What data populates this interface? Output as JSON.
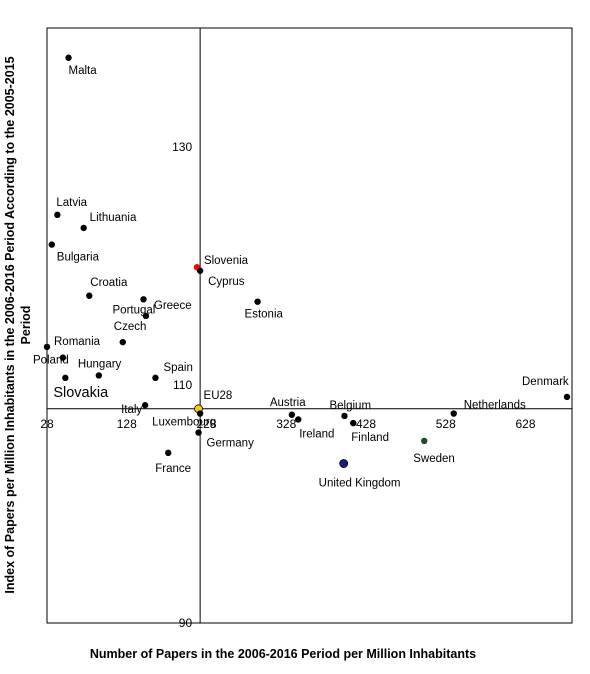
{
  "chart_data": {
    "type": "scatter",
    "title": "",
    "xlabel": "Number of Papers in the 2006-2016 Period per Million Inhabitants",
    "ylabel": "Index of Papers per Million Inhabitants in the 2006-2016 Period According to the 2005-2015 Period",
    "xlim": [
      28,
      680
    ],
    "ylim": [
      90,
      140
    ],
    "x_ticks": [
      "28",
      "128",
      "228",
      "328",
      "428",
      "528",
      "628"
    ],
    "y_ticks": [
      "90",
      "110",
      "130"
    ],
    "crosshair": {
      "x": 220,
      "y": 108
    },
    "points": [
      {
        "label": "Malta",
        "x": 55,
        "y": 137.5,
        "color": "#000000"
      },
      {
        "label": "Latvia",
        "x": 41,
        "y": 124.3,
        "color": "#000000"
      },
      {
        "label": "Lithuania",
        "x": 74,
        "y": 123.2,
        "color": "#000000"
      },
      {
        "label": "Bulgaria",
        "x": 34,
        "y": 121.8,
        "color": "#000000"
      },
      {
        "label": "Slovenia",
        "x": 216,
        "y": 119.9,
        "color": "#ff0000"
      },
      {
        "label": "Cyprus",
        "x": 220,
        "y": 119.6,
        "color": "#000000"
      },
      {
        "label": "Croatia",
        "x": 81,
        "y": 117.5,
        "color": "#000000"
      },
      {
        "label": "Portugal",
        "x": 149,
        "y": 117.2,
        "color": "#000000"
      },
      {
        "label": "Greece",
        "x": 152,
        "y": 115.8,
        "color": "#000000"
      },
      {
        "label": "Estonia",
        "x": 292,
        "y": 117.0,
        "color": "#000000"
      },
      {
        "label": "Czech",
        "x": 123,
        "y": 113.6,
        "color": "#000000"
      },
      {
        "label": "Romania",
        "x": 28,
        "y": 113.2,
        "color": "#000000"
      },
      {
        "label": "Poland",
        "x": 48,
        "y": 112.3,
        "color": "#000000"
      },
      {
        "label": "Hungary",
        "x": 93,
        "y": 110.8,
        "color": "#000000"
      },
      {
        "label": "Slovakia",
        "x": 51,
        "y": 110.6,
        "color": "#000000"
      },
      {
        "label": "Spain",
        "x": 164,
        "y": 110.6,
        "color": "#000000"
      },
      {
        "label": "Italy",
        "x": 151,
        "y": 108.3,
        "color": "#000000"
      },
      {
        "label": "EU28",
        "x": 218,
        "y": 108.0,
        "color": "#f7c818"
      },
      {
        "label": "Luxembourg",
        "x": 220,
        "y": 107.6,
        "color": "#000000"
      },
      {
        "label": "Germany",
        "x": 218,
        "y": 106.0,
        "color": "#000000"
      },
      {
        "label": "France",
        "x": 180,
        "y": 104.3,
        "color": "#000000"
      },
      {
        "label": "Austria",
        "x": 335,
        "y": 107.5,
        "color": "#000000"
      },
      {
        "label": "Ireland",
        "x": 343,
        "y": 107.1,
        "color": "#000000"
      },
      {
        "label": "Belgium",
        "x": 401,
        "y": 107.4,
        "color": "#000000"
      },
      {
        "label": "Finland",
        "x": 412,
        "y": 106.8,
        "color": "#000000"
      },
      {
        "label": "Sweden",
        "x": 501,
        "y": 105.3,
        "color": "#1f4d1f"
      },
      {
        "label": "Netherlands",
        "x": 538,
        "y": 107.6,
        "color": "#000000"
      },
      {
        "label": "United Kingdom",
        "x": 400,
        "y": 103.4,
        "color": "#1a1a8c"
      },
      {
        "label": "Denmark",
        "x": 680,
        "y": 109.0,
        "color": "#000000"
      }
    ]
  }
}
